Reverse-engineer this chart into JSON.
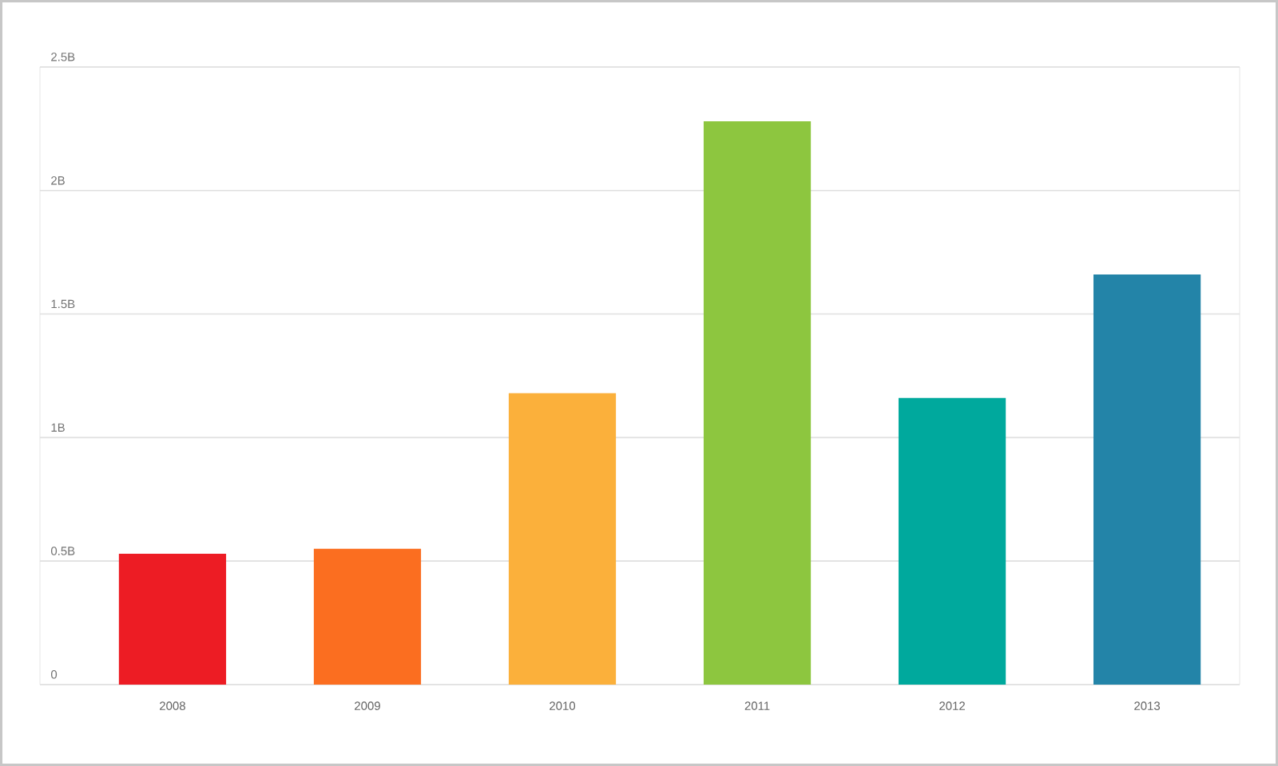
{
  "chart_data": {
    "type": "bar",
    "categories": [
      "2008",
      "2009",
      "2010",
      "2011",
      "2012",
      "2013"
    ],
    "values": [
      0.53,
      0.55,
      1.18,
      2.28,
      1.16,
      1.66
    ],
    "colors": [
      "#ed1c24",
      "#fb6e20",
      "#fbb03b",
      "#8dc63f",
      "#00a99d",
      "#2384a8"
    ],
    "ylim": [
      0,
      2.5
    ],
    "yticks": [
      {
        "value": 0,
        "label": "0"
      },
      {
        "value": 0.5,
        "label": "0.5B"
      },
      {
        "value": 1,
        "label": "1B"
      },
      {
        "value": 1.5,
        "label": "1.5B"
      },
      {
        "value": 2,
        "label": "2B"
      },
      {
        "value": 2.5,
        "label": "2.5B"
      }
    ],
    "grid": "y"
  }
}
